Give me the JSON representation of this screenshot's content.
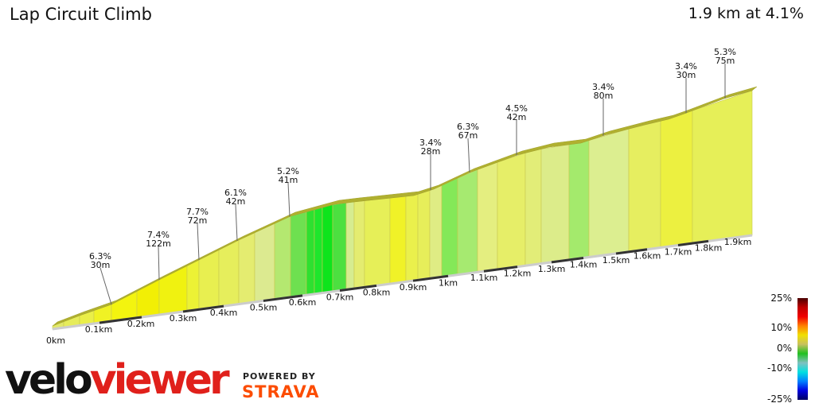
{
  "header": {
    "title": "Lap Circuit Climb",
    "summary": "1.9 km at 4.1%"
  },
  "chart_data": {
    "type": "area",
    "title": "Lap Circuit Climb",
    "x_ticks": [
      "0km",
      "0.1km",
      "0.2km",
      "0.3km",
      "0.4km",
      "0.5km",
      "0.6km",
      "0.7km",
      "0.8km",
      "0.9km",
      "1km",
      "1.1km",
      "1.2km",
      "1.3km",
      "1.4km",
      "1.5km",
      "1.6km",
      "1.7km",
      "1.8km",
      "1.9km"
    ],
    "annotations": [
      {
        "gradient": "6.3%",
        "length": "30m"
      },
      {
        "gradient": "7.4%",
        "length": "122m"
      },
      {
        "gradient": "7.7%",
        "length": "72m"
      },
      {
        "gradient": "6.1%",
        "length": "42m"
      },
      {
        "gradient": "5.2%",
        "length": "41m"
      },
      {
        "gradient": "3.4%",
        "length": "28m"
      },
      {
        "gradient": "6.3%",
        "length": "67m"
      },
      {
        "gradient": "4.5%",
        "length": "42m"
      },
      {
        "gradient": "3.4%",
        "length": "80m"
      },
      {
        "gradient": "3.4%",
        "length": "30m"
      },
      {
        "gradient": "5.3%",
        "length": "75m"
      }
    ],
    "segment_colors": [
      "#e2e86a",
      "#e6ec5a",
      "#eaef48",
      "#f0f224",
      "#f3f40f",
      "#f2ef05",
      "#f0f210",
      "#ecf235",
      "#e8ef50",
      "#e6ee5c",
      "#e4ec70",
      "#dcea90",
      "#b4e870",
      "#6ee050",
      "#2ee030",
      "#1ee62c",
      "#0ee41c",
      "#4ce040",
      "#d6ec90",
      "#e4ec70",
      "#e6ef58",
      "#f0f228",
      "#eaf04c",
      "#e6ee5a",
      "#dfec84",
      "#84e858",
      "#a6ea70",
      "#e4ee80",
      "#e6ee68",
      "#e2ed78",
      "#dcec8a",
      "#a4ea6c",
      "#dcee90",
      "#e6ee60",
      "#ecf040",
      "#e6ef58"
    ],
    "legend": {
      "labels": [
        "25%",
        "10%",
        "0%",
        "-10%",
        "-25%"
      ],
      "colors": [
        "#4a0000",
        "#c00000",
        "#f00000",
        "#ff8000",
        "#f0e000",
        "#c8c060",
        "#20c020",
        "#80c0c0",
        "#00e0e0",
        "#0080ff",
        "#0000e0",
        "#000060"
      ]
    }
  },
  "branding": {
    "logo_part1": "velo",
    "logo_part2": "viewer",
    "powered_by": "POWERED BY",
    "strava": "STRAVA"
  }
}
